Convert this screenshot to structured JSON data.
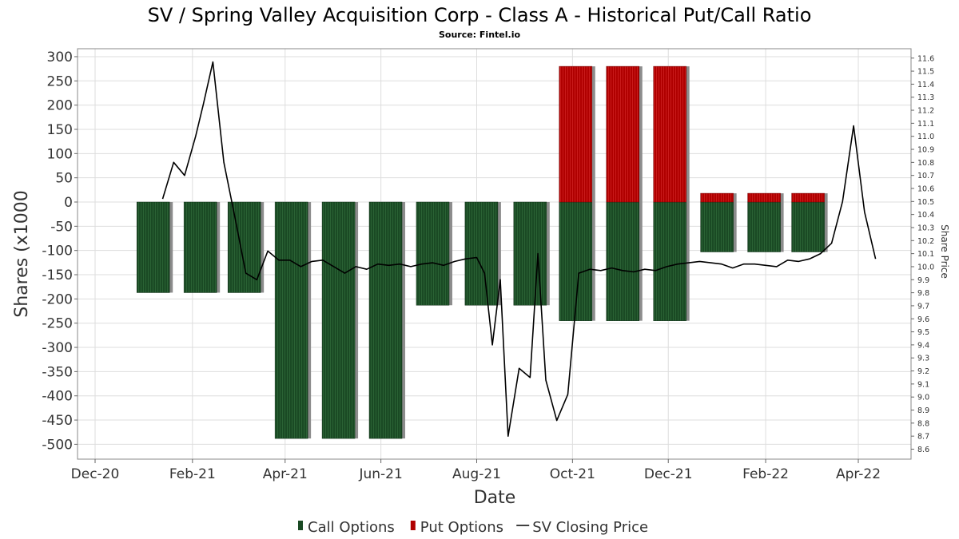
{
  "title": "SV / Spring Valley Acquisition Corp - Class A - Historical Put/Call Ratio",
  "subtitle": "Source: Fintel.io",
  "colors": {
    "call": "#1a4a24",
    "put": "#b00000",
    "price_line": "#000000",
    "grid": "#dddddd",
    "shadow": "#8c8c8c"
  },
  "chart_data": {
    "type": "bar",
    "xlabel": "Date",
    "ylabel": "Shares (x1000",
    "y2label": "Share Price",
    "x_range": [
      "2020-12-15",
      "2022-04-30"
    ],
    "ylim": [
      -530,
      310
    ],
    "y2lim": [
      8.55,
      11.68
    ],
    "yticks": [
      300,
      250,
      200,
      150,
      100,
      50,
      0,
      -50,
      -100,
      -150,
      -200,
      -250,
      -300,
      -350,
      -400,
      -450,
      -500
    ],
    "y2ticks": [
      11.6,
      11.5,
      11.4,
      11.3,
      11.2,
      11.1,
      11.0,
      10.9,
      10.8,
      10.7,
      10.6,
      10.5,
      10.4,
      10.3,
      10.2,
      10.1,
      10.0,
      9.9,
      9.8,
      9.7,
      9.6,
      9.5,
      9.4,
      9.3,
      9.2,
      9.1,
      9.0,
      8.9,
      8.8,
      8.7,
      8.6
    ],
    "xticks": [
      {
        "date": "2020-12-01",
        "label": "Dec-20"
      },
      {
        "date": "2021-02-01",
        "label": "Feb-21"
      },
      {
        "date": "2021-04-01",
        "label": "Apr-21"
      },
      {
        "date": "2021-06-01",
        "label": "Jun-21"
      },
      {
        "date": "2021-08-01",
        "label": "Aug-21"
      },
      {
        "date": "2021-10-01",
        "label": "Oct-21"
      },
      {
        "date": "2021-12-01",
        "label": "Dec-21"
      },
      {
        "date": "2022-02-01",
        "label": "Feb-22"
      },
      {
        "date": "2022-04-01",
        "label": "Apr-22"
      }
    ],
    "grid": true,
    "legend_position": "bottom",
    "bars": [
      {
        "date": "2021-01-07",
        "calls": -187,
        "puts": 0
      },
      {
        "date": "2021-02-06",
        "calls": -187,
        "puts": 0
      },
      {
        "date": "2021-03-06",
        "calls": -187,
        "puts": 0
      },
      {
        "date": "2021-04-05",
        "calls": -488,
        "puts": 0
      },
      {
        "date": "2021-05-05",
        "calls": -488,
        "puts": 0
      },
      {
        "date": "2021-06-04",
        "calls": -488,
        "puts": 0
      },
      {
        "date": "2021-07-04",
        "calls": -213,
        "puts": 0
      },
      {
        "date": "2021-08-04",
        "calls": -213,
        "puts": 0
      },
      {
        "date": "2021-09-04",
        "calls": -213,
        "puts": 0
      },
      {
        "date": "2021-10-03",
        "calls": -245,
        "puts": 280
      },
      {
        "date": "2021-11-02",
        "calls": -245,
        "puts": 280
      },
      {
        "date": "2021-12-02",
        "calls": -245,
        "puts": 280
      },
      {
        "date": "2022-01-01",
        "calls": -103,
        "puts": 18
      },
      {
        "date": "2022-01-31",
        "calls": -103,
        "puts": 18
      },
      {
        "date": "2022-02-28",
        "calls": -103,
        "puts": 18
      }
    ],
    "price_series": {
      "name": "SV Closing Price",
      "points": [
        [
          "2021-01-13",
          10.52
        ],
        [
          "2021-01-20",
          10.8
        ],
        [
          "2021-01-27",
          10.7
        ],
        [
          "2021-02-03",
          11.0
        ],
        [
          "2021-02-08",
          11.25
        ],
        [
          "2021-02-14",
          11.57
        ],
        [
          "2021-02-21",
          10.8
        ],
        [
          "2021-02-28",
          10.38
        ],
        [
          "2021-03-07",
          9.95
        ],
        [
          "2021-03-14",
          9.9
        ],
        [
          "2021-03-21",
          10.12
        ],
        [
          "2021-03-28",
          10.05
        ],
        [
          "2021-04-04",
          10.05
        ],
        [
          "2021-04-11",
          10.0
        ],
        [
          "2021-04-18",
          10.04
        ],
        [
          "2021-04-25",
          10.05
        ],
        [
          "2021-05-02",
          10.0
        ],
        [
          "2021-05-09",
          9.95
        ],
        [
          "2021-05-16",
          10.0
        ],
        [
          "2021-05-23",
          9.98
        ],
        [
          "2021-05-30",
          10.02
        ],
        [
          "2021-06-06",
          10.01
        ],
        [
          "2021-06-13",
          10.02
        ],
        [
          "2021-06-20",
          10.0
        ],
        [
          "2021-06-27",
          10.02
        ],
        [
          "2021-07-04",
          10.03
        ],
        [
          "2021-07-11",
          10.01
        ],
        [
          "2021-07-18",
          10.04
        ],
        [
          "2021-07-25",
          10.06
        ],
        [
          "2021-08-01",
          10.07
        ],
        [
          "2021-08-06",
          9.95
        ],
        [
          "2021-08-11",
          9.4
        ],
        [
          "2021-08-16",
          9.9
        ],
        [
          "2021-08-21",
          8.7
        ],
        [
          "2021-08-28",
          9.22
        ],
        [
          "2021-09-04",
          9.15
        ],
        [
          "2021-09-09",
          10.1
        ],
        [
          "2021-09-14",
          9.13
        ],
        [
          "2021-09-21",
          8.82
        ],
        [
          "2021-09-28",
          9.02
        ],
        [
          "2021-10-05",
          9.95
        ],
        [
          "2021-10-12",
          9.98
        ],
        [
          "2021-10-19",
          9.97
        ],
        [
          "2021-10-26",
          9.99
        ],
        [
          "2021-11-02",
          9.97
        ],
        [
          "2021-11-09",
          9.96
        ],
        [
          "2021-11-16",
          9.98
        ],
        [
          "2021-11-23",
          9.97
        ],
        [
          "2021-11-30",
          10.0
        ],
        [
          "2021-12-07",
          10.02
        ],
        [
          "2021-12-14",
          10.03
        ],
        [
          "2021-12-21",
          10.04
        ],
        [
          "2021-12-28",
          10.03
        ],
        [
          "2022-01-04",
          10.02
        ],
        [
          "2022-01-11",
          9.99
        ],
        [
          "2022-01-18",
          10.02
        ],
        [
          "2022-01-25",
          10.02
        ],
        [
          "2022-02-01",
          10.01
        ],
        [
          "2022-02-08",
          10.0
        ],
        [
          "2022-02-15",
          10.05
        ],
        [
          "2022-02-22",
          10.04
        ],
        [
          "2022-03-01",
          10.06
        ],
        [
          "2022-03-08",
          10.1
        ],
        [
          "2022-03-15",
          10.18
        ],
        [
          "2022-03-22",
          10.5
        ],
        [
          "2022-03-29",
          11.08
        ],
        [
          "2022-04-05",
          10.42
        ],
        [
          "2022-04-12",
          10.06
        ]
      ]
    }
  },
  "legend": {
    "items": [
      {
        "key": "call",
        "label": "Call Options"
      },
      {
        "key": "put",
        "label": "Put Options"
      },
      {
        "key": "price",
        "label": "SV Closing Price"
      }
    ]
  }
}
